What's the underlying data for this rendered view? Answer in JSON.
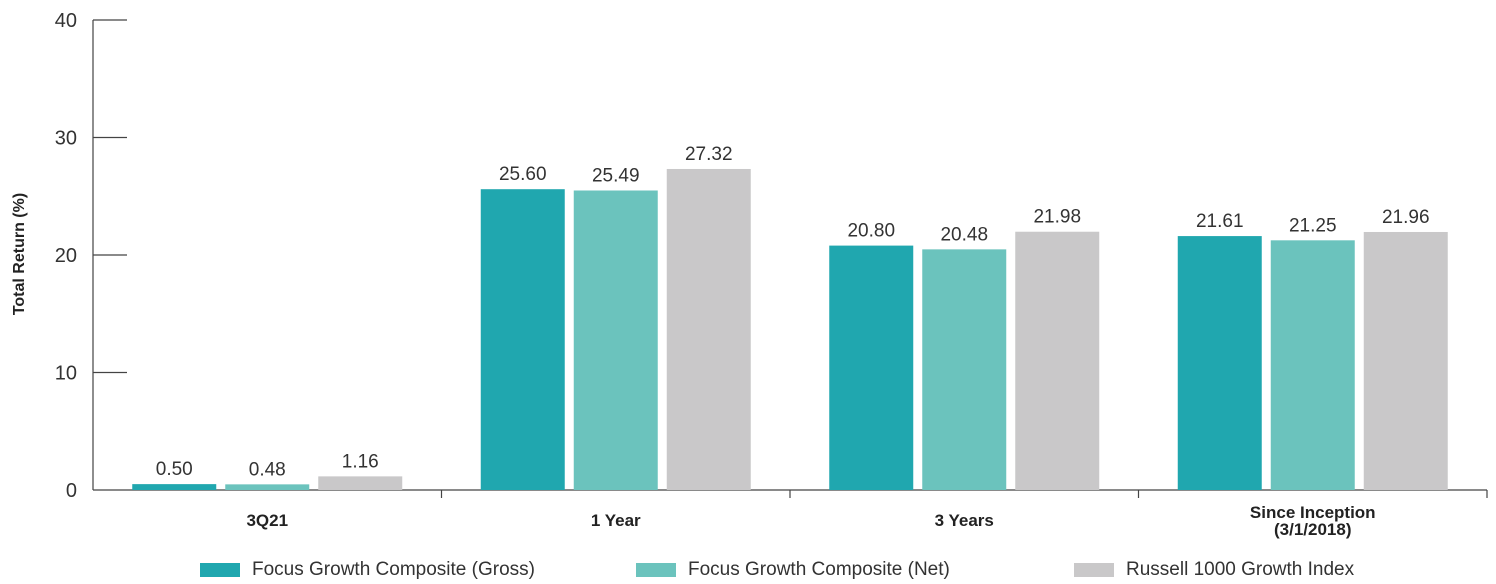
{
  "chart_data": {
    "type": "bar",
    "categories": [
      "3Q21",
      "1 Year",
      "3 Years",
      "Since Inception\n(3/1/2018)"
    ],
    "series": [
      {
        "name": "Focus Growth Composite (Gross)",
        "color": "#20a7af",
        "values": [
          0.5,
          25.6,
          20.8,
          21.61
        ]
      },
      {
        "name": "Focus Growth Composite (Net)",
        "color": "#6bc3bd",
        "values": [
          0.48,
          25.49,
          20.48,
          21.25
        ]
      },
      {
        "name": "Russell 1000 Growth Index",
        "color": "#c9c8c9",
        "values": [
          1.16,
          27.32,
          21.98,
          21.96
        ]
      }
    ],
    "value_labels": [
      [
        "0.50",
        "25.60",
        "20.80",
        "21.61"
      ],
      [
        "0.48",
        "25.49",
        "20.48",
        "21.25"
      ],
      [
        "1.16",
        "27.32",
        "21.98",
        "21.96"
      ]
    ],
    "ylabel": "Total Return (%)",
    "ylim": [
      0,
      40
    ],
    "yticks": [
      0,
      10,
      20,
      30,
      40
    ],
    "grid": false,
    "legend_position": "bottom"
  }
}
